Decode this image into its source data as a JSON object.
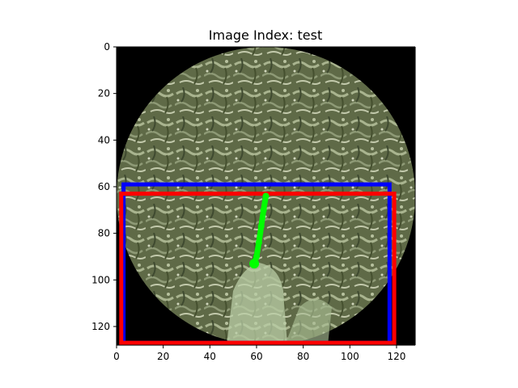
{
  "chart_data": {
    "type": "image",
    "title": "Image Index: test",
    "xlabel": "",
    "ylabel": "",
    "xlim": [
      0,
      128
    ],
    "ylim": [
      128,
      0
    ],
    "x_ticks": [
      "0",
      "20",
      "40",
      "60",
      "80",
      "100",
      "120"
    ],
    "y_ticks": [
      "0",
      "20",
      "40",
      "60",
      "80",
      "100",
      "120"
    ],
    "grid": false,
    "legend": "none",
    "image": {
      "description_free": true,
      "circle_center": [
        64,
        64
      ],
      "circle_radius": 64,
      "background_color": "#000000",
      "foliage_color": "#6f7a54"
    },
    "boxes": [
      {
        "color": "#0000ff",
        "x0": 3,
        "y0": 59,
        "x1": 117,
        "y1": 127
      },
      {
        "color": "#ff0000",
        "x0": 2,
        "y0": 63,
        "x1": 119,
        "y1": 127
      }
    ],
    "path": {
      "color": "#00ff00",
      "points": [
        [
          64,
          64
        ],
        [
          63,
          70
        ],
        [
          62,
          77
        ],
        [
          61,
          84
        ],
        [
          60,
          90
        ],
        [
          59,
          93
        ]
      ]
    }
  }
}
